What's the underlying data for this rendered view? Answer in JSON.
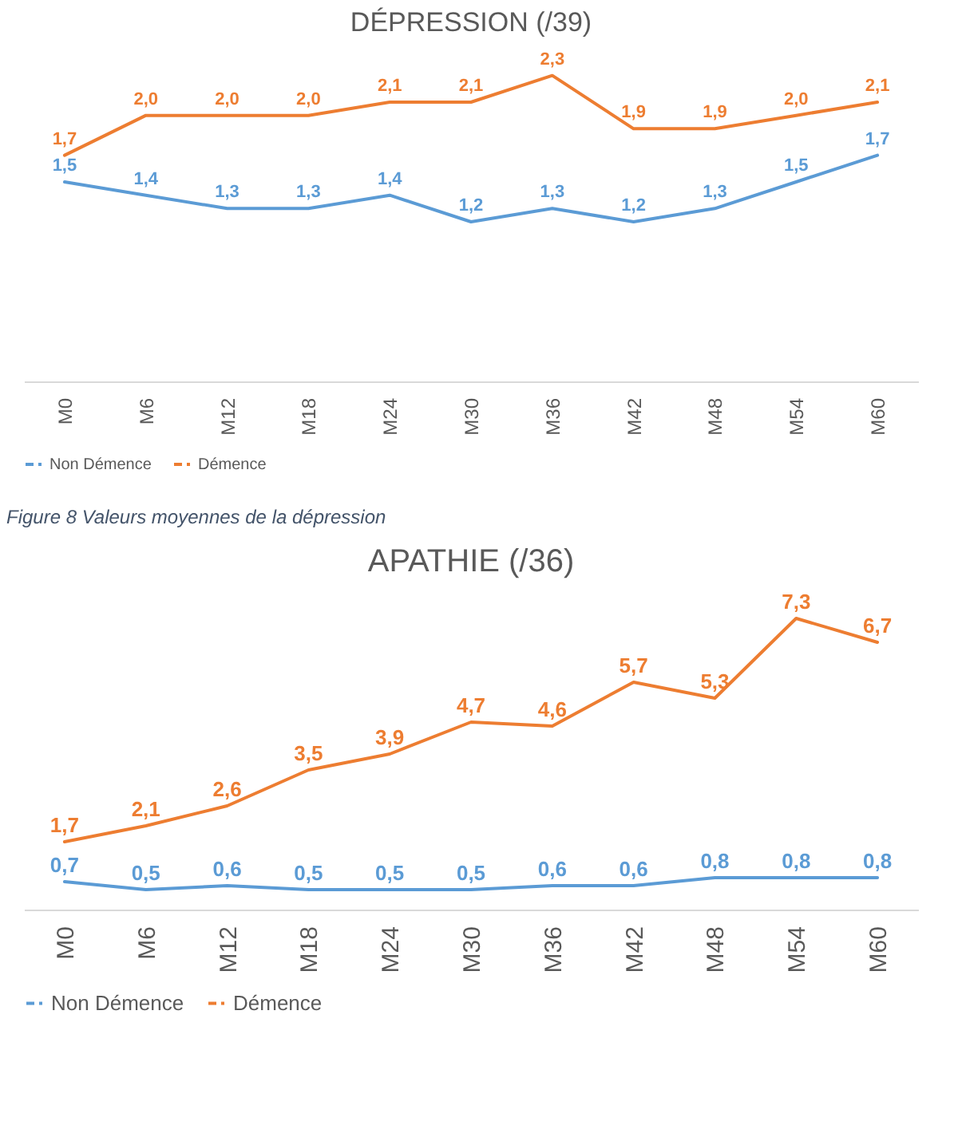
{
  "chart_data": [
    {
      "type": "line",
      "title": "DÉPRESSION (/39)",
      "categories": [
        "M0",
        "M6",
        "M12",
        "M18",
        "M24",
        "M30",
        "M36",
        "M42",
        "M48",
        "M54",
        "M60"
      ],
      "legend": "bottom",
      "annotations": [
        "Figure 8 Valeurs moyennes de la dépression"
      ],
      "series": [
        {
          "name": "Non Démence",
          "color": "#5b9bd5",
          "values": [
            1.5,
            1.4,
            1.3,
            1.3,
            1.4,
            1.2,
            1.3,
            1.2,
            1.3,
            1.5,
            1.7
          ],
          "value_labels": [
            "1,5",
            "1,4",
            "1,3",
            "1,3",
            "1,4",
            "1,2",
            "1,3",
            "1,2",
            "1,3",
            "1,5",
            "1,7"
          ]
        },
        {
          "name": "Démence",
          "color": "#ed7d31",
          "values": [
            1.7,
            2.0,
            2.0,
            2.0,
            2.1,
            2.1,
            2.3,
            1.9,
            1.9,
            2.0,
            2.1
          ],
          "value_labels": [
            "1,7",
            "2,0",
            "2,0",
            "2,0",
            "2,1",
            "2,1",
            "2,3",
            "1,9",
            "1,9",
            "2,0",
            "2,1"
          ]
        }
      ]
    },
    {
      "type": "line",
      "title": "APATHIE (/36)",
      "categories": [
        "M0",
        "M6",
        "M12",
        "M18",
        "M24",
        "M30",
        "M36",
        "M42",
        "M48",
        "M54",
        "M60"
      ],
      "legend": "bottom",
      "series": [
        {
          "name": "Non Démence",
          "color": "#5b9bd5",
          "values": [
            0.7,
            0.5,
            0.6,
            0.5,
            0.5,
            0.5,
            0.6,
            0.6,
            0.8,
            0.8,
            0.8
          ],
          "value_labels": [
            "0,7",
            "0,5",
            "0,6",
            "0,5",
            "0,5",
            "0,5",
            "0,6",
            "0,6",
            "0,8",
            "0,8",
            "0,8"
          ]
        },
        {
          "name": "Démence",
          "color": "#ed7d31",
          "values": [
            1.7,
            2.1,
            2.6,
            3.5,
            3.9,
            4.7,
            4.6,
            5.7,
            5.3,
            7.3,
            6.7
          ],
          "value_labels": [
            "1,7",
            "2,1",
            "2,6",
            "3,5",
            "3,9",
            "4,7",
            "4,6",
            "5,7",
            "5,3",
            "7,3",
            "6,7"
          ]
        }
      ]
    }
  ]
}
